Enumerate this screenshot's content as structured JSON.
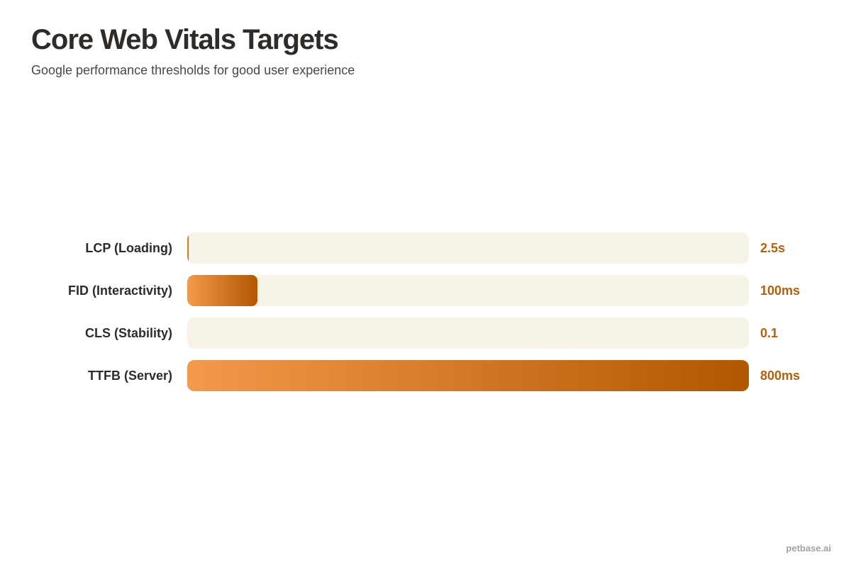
{
  "title": "Core Web Vitals Targets",
  "subtitle": "Google performance thresholds for good user experience",
  "watermark": "petbase.ai",
  "colors": {
    "bar_start": "#f39a4b",
    "bar_end": "#b15700",
    "track": "#f8f3e9",
    "value_text": "#b35f0c"
  },
  "chart_data": {
    "type": "bar",
    "orientation": "horizontal",
    "title": "Core Web Vitals Targets",
    "subtitle": "Google performance thresholds for good user experience",
    "categories": [
      "LCP (Loading)",
      "FID (Interactivity)",
      "CLS (Stability)",
      "TTFB (Server)"
    ],
    "value_labels": [
      "2.5s",
      "100ms",
      "0.1",
      "800ms"
    ],
    "values": [
      2.5,
      100,
      0.1,
      800
    ],
    "xlim": [
      0,
      800
    ],
    "grid": false,
    "legend": "none"
  }
}
